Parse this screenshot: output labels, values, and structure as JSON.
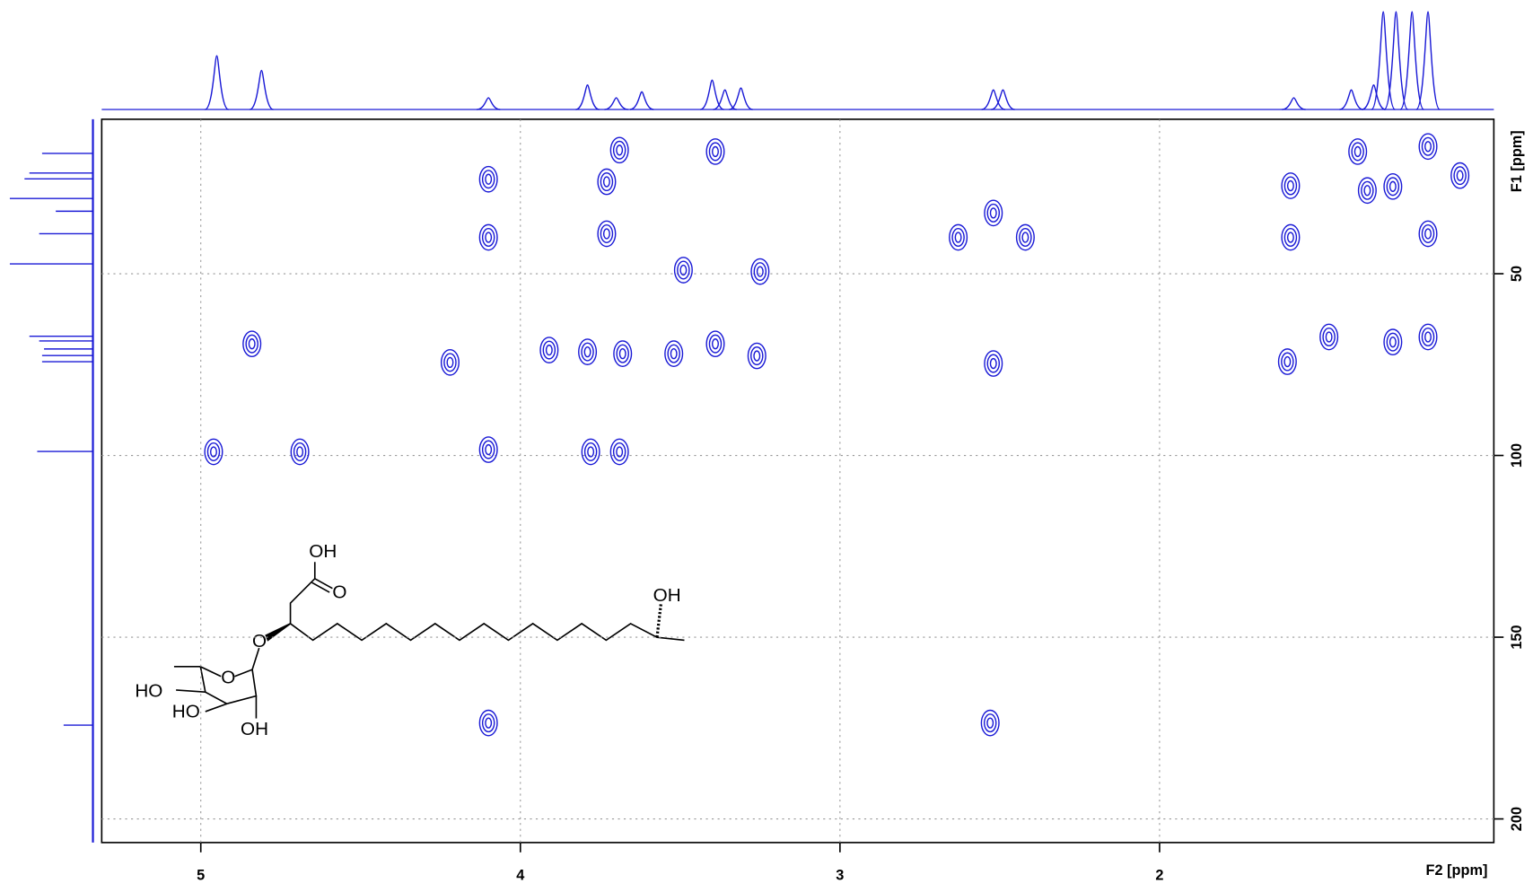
{
  "chart_data": {
    "type": "scatter",
    "x_label": "F2 [ppm]",
    "y_label": "F1 [ppm]",
    "xlim": [
      5.31,
      0.954
    ],
    "ylim": [
      7.5,
      206.5
    ],
    "xticks": [
      5,
      4,
      3,
      2
    ],
    "yticks": [
      50,
      100,
      150,
      200
    ],
    "grid": true,
    "color": "#1a1ad6",
    "x": [
      3.69,
      3.39,
      4.1,
      3.73,
      4.1,
      3.73,
      3.49,
      3.25,
      4.84,
      3.91,
      3.79,
      3.68,
      3.52,
      3.39,
      3.26,
      4.22,
      4.96,
      4.69,
      4.1,
      3.78,
      3.69,
      2.52,
      2.63,
      2.42,
      2.52,
      4.1,
      2.53,
      1.59,
      1.59,
      1.6,
      1.47,
      1.35,
      1.27,
      1.16,
      1.16,
      1.16,
      1.06,
      1.38,
      1.27
    ],
    "values": [
      16,
      16.4,
      24,
      24.7,
      40,
      39,
      49,
      49.4,
      69.3,
      71,
      71.5,
      72,
      72,
      69.3,
      72.6,
      74.4,
      99,
      99,
      98.4,
      99,
      99,
      33.3,
      40,
      40,
      74.7,
      173.6,
      173.6,
      25.8,
      40,
      74.2,
      67.4,
      27.1,
      68.8,
      15,
      39,
      67.4,
      23,
      16.4,
      26
    ],
    "f2_projection": {
      "x": [
        4.95,
        4.81,
        4.1,
        3.79,
        3.7,
        3.62,
        3.4,
        3.36,
        3.31,
        2.52,
        2.49,
        1.58,
        1.4,
        1.33,
        1.3,
        1.26,
        1.21,
        1.16
      ],
      "values": [
        55,
        40,
        12,
        25,
        12,
        18,
        30,
        20,
        22,
        20,
        20,
        12,
        20,
        25,
        100,
        100,
        100,
        100
      ]
    },
    "f1_projection": {
      "y": [
        16.9,
        22.3,
        23.9,
        29.3,
        32.8,
        39,
        47.3,
        67.2,
        68.5,
        70.7,
        72.5,
        74.2,
        98.9,
        174.2
      ],
      "values": [
        52,
        65,
        70,
        85,
        38,
        55,
        85,
        65,
        55,
        50,
        52,
        52,
        57,
        30
      ]
    },
    "structure_labels": [
      "OH",
      "O",
      "OH",
      "O",
      "O",
      "HO",
      "HO",
      "OH"
    ]
  }
}
